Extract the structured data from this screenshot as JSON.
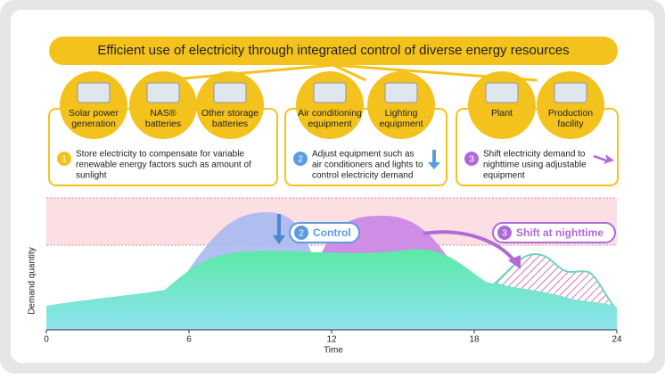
{
  "title": "Efficient use of electricity through integrated control of diverse energy resources",
  "groups": [
    {
      "items": [
        {
          "label": [
            "Solar power",
            "generation"
          ]
        },
        {
          "label": [
            "NAS®",
            "batteries"
          ]
        },
        {
          "label": [
            "Other storage",
            "batteries"
          ]
        }
      ],
      "number": "1",
      "description": [
        "Store electricity to compensate for variable",
        "renewable energy factors such as amount of",
        "sunlight"
      ]
    },
    {
      "items": [
        {
          "label": [
            "Air conditioning",
            "equipment"
          ]
        },
        {
          "label": [
            "Lighting",
            "equipment"
          ]
        }
      ],
      "number": "2",
      "description": [
        "Adjust equipment such as",
        "air conditioners and lights to",
        "control electricity demand"
      ]
    },
    {
      "items": [
        {
          "label": [
            "Plant"
          ]
        },
        {
          "label": [
            "Production",
            "facility"
          ]
        }
      ],
      "number": "3",
      "description": [
        "Shift electricity demand to",
        "nighttime using adjustable",
        "equipment"
      ]
    }
  ],
  "chart": {
    "badges": [
      {
        "number": "2",
        "label": "Control"
      },
      {
        "number": "3",
        "label": "Shift at nighttime"
      }
    ],
    "y_label": "Demand quantity",
    "x_label": "Time",
    "xlim": [
      0,
      24
    ],
    "xticks": [
      0,
      6,
      12,
      18,
      24
    ]
  }
}
